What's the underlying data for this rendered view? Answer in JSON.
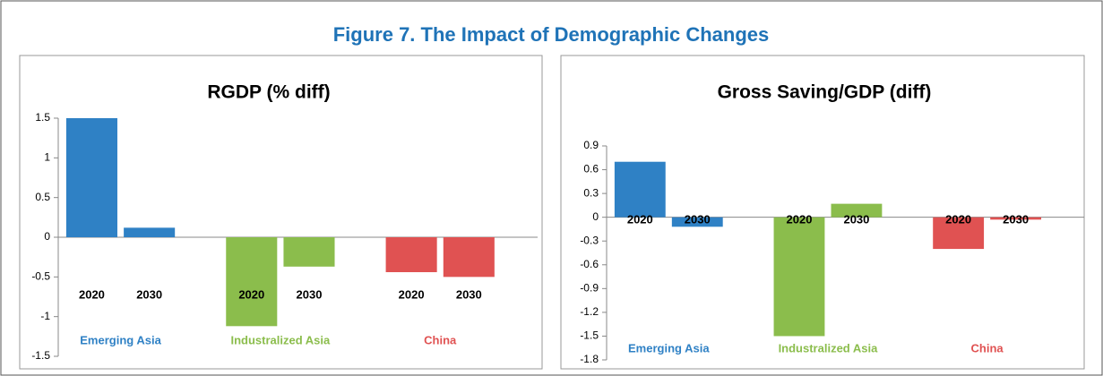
{
  "header": {
    "title": "Figure 7. The Impact of Demographic Changes"
  },
  "chart_data": [
    {
      "type": "bar",
      "title": "RGDP (% diff)",
      "categories": [
        "Emerging Asia",
        "Industralized Asia",
        "China"
      ],
      "colors": [
        "#2f81c5",
        "#8bbd4c",
        "#e05252"
      ],
      "series": [
        {
          "name": "2020",
          "values": [
            1.5,
            -1.12,
            -0.44
          ]
        },
        {
          "name": "2030",
          "values": [
            0.12,
            -0.37,
            -0.5
          ]
        }
      ],
      "ylim": [
        -1.5,
        1.5
      ],
      "yticks": [
        -1.5,
        -1,
        -0.5,
        0,
        0.5,
        1,
        1.5
      ]
    },
    {
      "type": "bar",
      "title": "Gross Saving/GDP (diff)",
      "categories": [
        "Emerging Asia",
        "Industralized Asia",
        "China"
      ],
      "colors": [
        "#2f81c5",
        "#8bbd4c",
        "#e05252"
      ],
      "series": [
        {
          "name": "2020",
          "values": [
            0.7,
            -1.5,
            -0.4
          ]
        },
        {
          "name": "2030",
          "values": [
            -0.12,
            0.17,
            -0.03
          ]
        }
      ],
      "ylim": [
        -1.8,
        0.9
      ],
      "yticks": [
        -1.8,
        -1.5,
        -1.2,
        -0.9,
        -0.6,
        -0.3,
        0,
        0.3,
        0.6,
        0.9
      ]
    }
  ]
}
